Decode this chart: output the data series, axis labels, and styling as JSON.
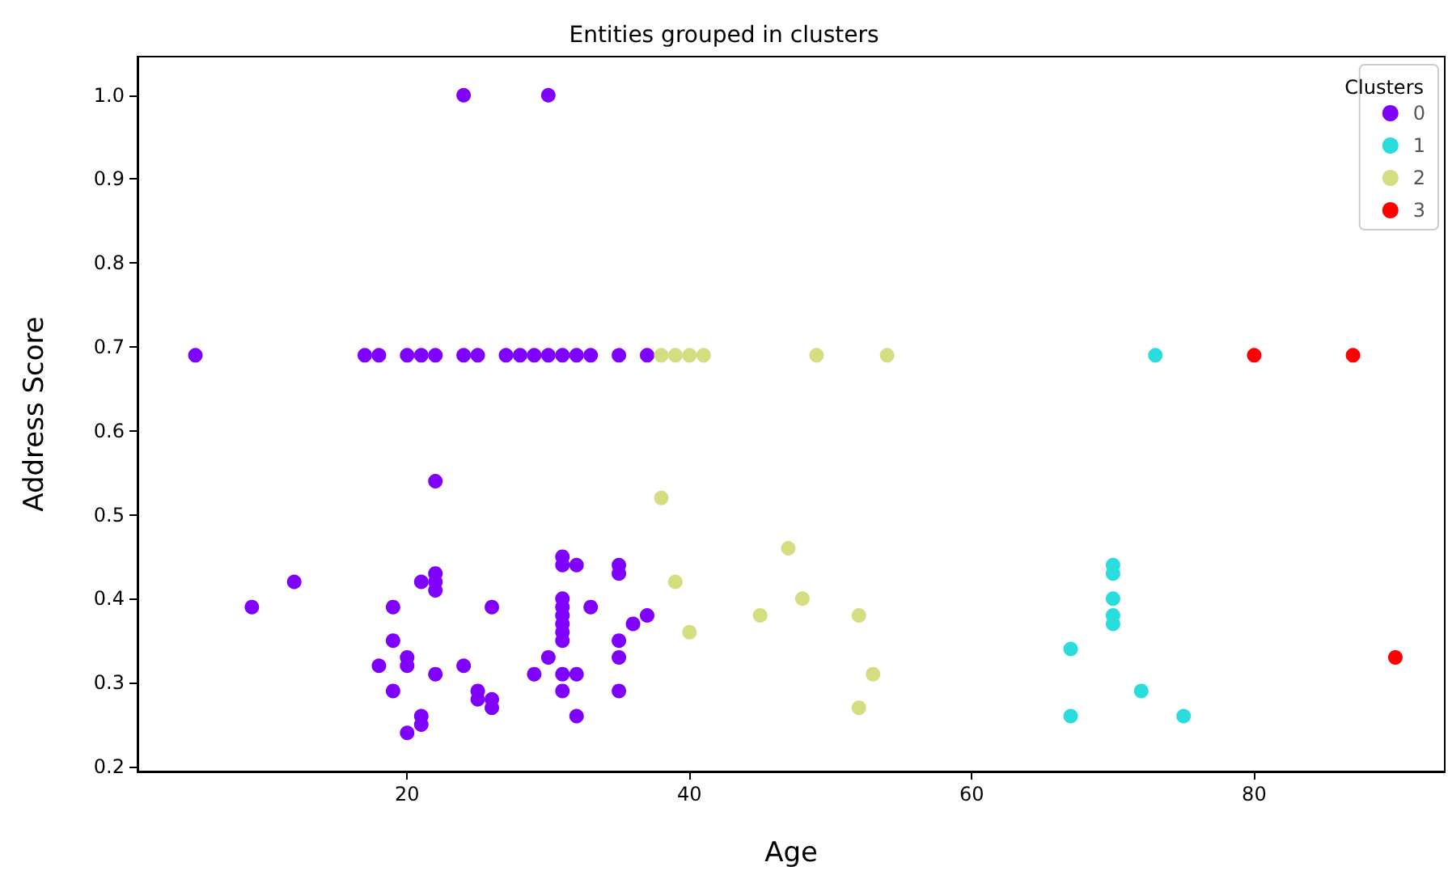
{
  "chart_data": {
    "type": "scatter",
    "title": "Entities grouped in clusters",
    "xlabel": "Age",
    "ylabel": "Address Score",
    "legend_title": "Clusters",
    "legend": "top right",
    "marker": "circle",
    "grid": false,
    "xlim": [
      0.9,
      93.5
    ],
    "xticks": [
      20,
      40,
      60,
      80
    ],
    "ylim": [
      0.194,
      1.046
    ],
    "yticks": [
      0.2,
      0.3,
      0.4,
      0.5,
      0.6,
      0.7,
      0.8,
      0.9,
      {
        "value": 1.0,
        "label": "1.0"
      }
    ],
    "series": [
      {
        "name": "0",
        "color": "#8000ff",
        "x": [
          5,
          17,
          18,
          20,
          21,
          22,
          24,
          25,
          27,
          28,
          29,
          30,
          31,
          32,
          33,
          35,
          37,
          24,
          30,
          22,
          9,
          12,
          18,
          19,
          19,
          19,
          20,
          20,
          20,
          21,
          21,
          21,
          22,
          22,
          22,
          22,
          24,
          25,
          25,
          26,
          26,
          26,
          29,
          30,
          31,
          31,
          31,
          31,
          31,
          31,
          31,
          31,
          31,
          31,
          32,
          32,
          32,
          33,
          35,
          35,
          35,
          35,
          35,
          36,
          37
        ],
        "values": [
          0.69,
          0.69,
          0.69,
          0.69,
          0.69,
          0.69,
          0.69,
          0.69,
          0.69,
          0.69,
          0.69,
          0.69,
          0.69,
          0.69,
          0.69,
          0.69,
          0.69,
          1.0,
          1.0,
          0.54,
          0.39,
          0.42,
          0.32,
          0.39,
          0.35,
          0.29,
          0.33,
          0.32,
          0.24,
          0.42,
          0.26,
          0.25,
          0.43,
          0.42,
          0.41,
          0.31,
          0.32,
          0.29,
          0.28,
          0.39,
          0.28,
          0.27,
          0.31,
          0.33,
          0.45,
          0.44,
          0.4,
          0.39,
          0.38,
          0.37,
          0.36,
          0.35,
          0.31,
          0.29,
          0.44,
          0.31,
          0.26,
          0.39,
          0.44,
          0.43,
          0.35,
          0.33,
          0.29,
          0.37,
          0.38
        ]
      },
      {
        "name": "1",
        "color": "#2adddd",
        "x": [
          73,
          70,
          70,
          70,
          70,
          70,
          67,
          67,
          72,
          75
        ],
        "values": [
          0.69,
          0.44,
          0.43,
          0.4,
          0.38,
          0.37,
          0.34,
          0.26,
          0.29,
          0.26
        ]
      },
      {
        "name": "2",
        "color": "#d4dd80",
        "x": [
          38,
          39,
          40,
          41,
          49,
          54,
          38,
          39,
          40,
          45,
          47,
          48,
          52,
          52,
          53
        ],
        "values": [
          0.69,
          0.69,
          0.69,
          0.69,
          0.69,
          0.69,
          0.52,
          0.42,
          0.36,
          0.38,
          0.46,
          0.4,
          0.38,
          0.27,
          0.31
        ]
      },
      {
        "name": "3",
        "color": "#ff0000",
        "x": [
          80,
          87,
          90
        ],
        "values": [
          0.69,
          0.69,
          0.33
        ]
      }
    ]
  }
}
